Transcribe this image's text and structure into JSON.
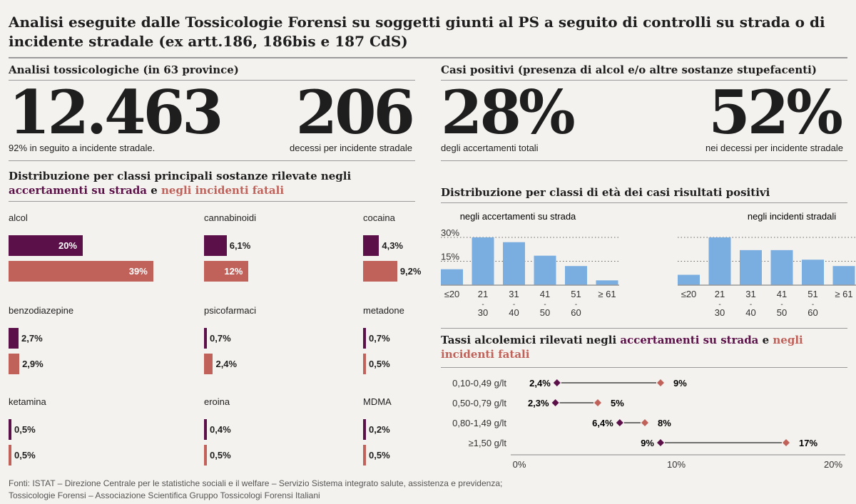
{
  "title": "Analisi eseguite dalle Tossicologie Forensi su soggetti giunti al PS a seguito di controlli su strada o di incidente stradale (ex artt.186, 186bis e 187 CdS)",
  "left_header": "Analisi tossicologiche (in 63 province)",
  "right_header": "Casi positivi (presenza di alcol e/o altre sostanze stupefacenti)",
  "kpis": [
    {
      "value": "12.463",
      "label": "92% in seguito a incidente stradale."
    },
    {
      "value": "206",
      "label": "decessi per incidente stradale"
    },
    {
      "value": "28%",
      "label": "degli accertamenti totali"
    },
    {
      "value": "52%",
      "label": "nei decessi per incidente stradale"
    }
  ],
  "colors": {
    "strada": "#5c1049",
    "fatali": "#c0615a",
    "age_bars": "#7aaee0",
    "background": "#f4f2ee"
  },
  "chart_data": [
    {
      "type": "bar",
      "orientation": "horizontal",
      "title_parts": [
        "Distribuzione per classi principali sostanze rilevate negli ",
        "accertamenti su strada",
        " e ",
        "negli incidenti fatali"
      ],
      "categories": [
        "alcol",
        "cannabinoidi",
        "cocaina",
        "benzodiazepine",
        "psicofarmaci",
        "metadone",
        "ketamina",
        "eroina",
        "MDMA"
      ],
      "series": [
        {
          "name": "accertamenti su strada",
          "values": [
            20,
            6.1,
            4.3,
            2.7,
            0.7,
            0.7,
            0.5,
            0.4,
            0.2
          ],
          "labels": [
            "20%",
            "6,1%",
            "4,3%",
            "2,7%",
            "0,7%",
            "0,7%",
            "0,5%",
            "0,4%",
            "0,2%"
          ]
        },
        {
          "name": "negli incidenti fatali",
          "values": [
            39,
            12,
            9.2,
            2.9,
            2.4,
            0.5,
            0.5,
            0.5,
            0.5
          ],
          "labels": [
            "39%",
            "12%",
            "9,2%",
            "2,9%",
            "2,4%",
            "0,5%",
            "0,5%",
            "0,5%",
            "0,5%"
          ]
        }
      ]
    },
    {
      "type": "bar",
      "title": "Distribuzione per classi di età dei casi risultati positivi",
      "categories": [
        [
          "≤20"
        ],
        [
          "21",
          "-",
          "30"
        ],
        [
          "31",
          "-",
          "40"
        ],
        [
          "41",
          "-",
          "50"
        ],
        [
          "51",
          "-",
          "60"
        ],
        [
          "≥ 61"
        ]
      ],
      "yticks": [
        "30%",
        "15%"
      ],
      "ylim": [
        0,
        30
      ],
      "panels": [
        {
          "subtitle": "negli accertamenti su strada",
          "values": [
            10,
            30,
            27,
            18.5,
            12,
            3
          ]
        },
        {
          "subtitle": "negli incidenti stradali",
          "values": [
            6.5,
            30,
            22,
            22,
            16,
            12
          ]
        }
      ]
    },
    {
      "type": "dumbbell",
      "title_parts": [
        "Tassi alcolemici rilevati negli ",
        "accertamenti su strada",
        " e ",
        "negli incidenti fatali"
      ],
      "categories": [
        "0,10-0,49 g/lt",
        "0,50-0,79 g/lt",
        "0,80-1,49 g/lt",
        "≥1,50 g/lt"
      ],
      "strada": [
        2.4,
        2.3,
        6.4,
        9
      ],
      "fatali": [
        9,
        5,
        8,
        17
      ],
      "strada_labels": [
        "2,4%",
        "2,3%",
        "6,4%",
        "9%"
      ],
      "fatali_labels": [
        "9%",
        "5%",
        "8%",
        "17%"
      ],
      "xticks": [
        "0%",
        "10%",
        "20%"
      ],
      "xlim": [
        0,
        20
      ]
    }
  ],
  "footer": [
    "Fonti: ISTAT – Direzione Centrale per le statistiche sociali e il welfare – Servizio Sistema integrato salute, assistenza e previdenza;",
    "Tossicologie Forensi – Associazione Scientifica Gruppo Tossicologi Forensi Italiani"
  ]
}
